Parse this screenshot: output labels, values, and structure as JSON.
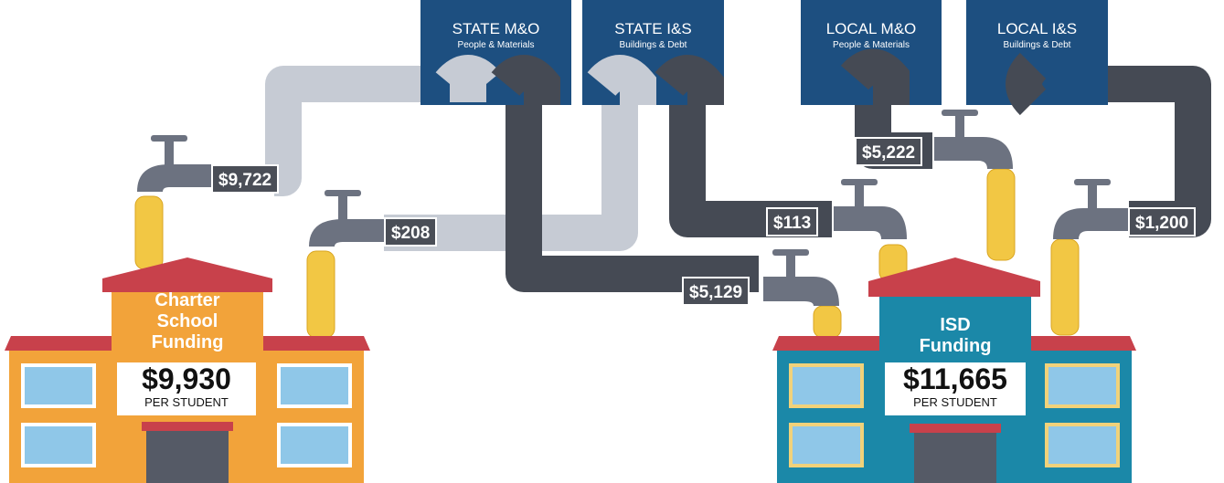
{
  "sources": [
    {
      "title": "STATE M&O",
      "subtitle": "People & Materials"
    },
    {
      "title": "STATE I&S",
      "subtitle": "Buildings & Debt"
    },
    {
      "title": "LOCAL M&O",
      "subtitle": "People & Materials"
    },
    {
      "title": "LOCAL I&S",
      "subtitle": "Buildings & Debt"
    }
  ],
  "flows": [
    "$9,722",
    "$208",
    "$5,129",
    "$113",
    "$5,222",
    "$1,200"
  ],
  "buildings": [
    {
      "name": "Charter School Funding",
      "amount": "$9,930",
      "unit": "PER STUDENT"
    },
    {
      "name": "ISD Funding",
      "amount": "$11,665",
      "unit": "PER STUDENT"
    }
  ]
}
